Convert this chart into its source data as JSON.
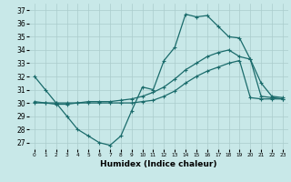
{
  "xlabel": "Humidex (Indice chaleur)",
  "background_color": "#c8e8e8",
  "grid_color": "#aacccc",
  "line_color": "#1a6b6b",
  "x_ticks": [
    0,
    1,
    2,
    3,
    4,
    5,
    6,
    7,
    8,
    9,
    10,
    11,
    12,
    13,
    14,
    15,
    16,
    17,
    18,
    19,
    20,
    21,
    22,
    23
  ],
  "y_ticks": [
    27,
    28,
    29,
    30,
    31,
    32,
    33,
    34,
    35,
    36,
    37
  ],
  "ylim": [
    26.5,
    37.5
  ],
  "xlim": [
    -0.5,
    23.5
  ],
  "line1_x": [
    0,
    1,
    2,
    3,
    4,
    5,
    6,
    7,
    8,
    9,
    10,
    11,
    12,
    13,
    14,
    15,
    16,
    17,
    18,
    19,
    20,
    21,
    22,
    23
  ],
  "line1_y": [
    32,
    31,
    30,
    29,
    28,
    27.5,
    27,
    26.8,
    27.5,
    29.4,
    31.2,
    31.0,
    33.2,
    34.2,
    36.7,
    36.5,
    36.6,
    35.8,
    35.0,
    34.9,
    33.3,
    31.5,
    30.5,
    30.4
  ],
  "line2_x": [
    0,
    1,
    2,
    3,
    4,
    5,
    6,
    7,
    8,
    9,
    10,
    11,
    12,
    13,
    14,
    15,
    16,
    17,
    18,
    19,
    20,
    21,
    22,
    23
  ],
  "line2_y": [
    30.1,
    30.0,
    29.9,
    29.9,
    30.0,
    30.1,
    30.1,
    30.1,
    30.2,
    30.3,
    30.5,
    30.8,
    31.2,
    31.8,
    32.5,
    33.0,
    33.5,
    33.8,
    34.0,
    33.5,
    33.3,
    30.5,
    30.4,
    30.3
  ],
  "line3_x": [
    0,
    1,
    2,
    3,
    4,
    5,
    6,
    7,
    8,
    9,
    10,
    11,
    12,
    13,
    14,
    15,
    16,
    17,
    18,
    19,
    20,
    21,
    22,
    23
  ],
  "line3_y": [
    30.0,
    30.0,
    30.0,
    30.0,
    30.0,
    30.0,
    30.0,
    30.0,
    30.0,
    30.0,
    30.1,
    30.2,
    30.5,
    30.9,
    31.5,
    32.0,
    32.4,
    32.7,
    33.0,
    33.2,
    30.4,
    30.3,
    30.3,
    30.3
  ]
}
